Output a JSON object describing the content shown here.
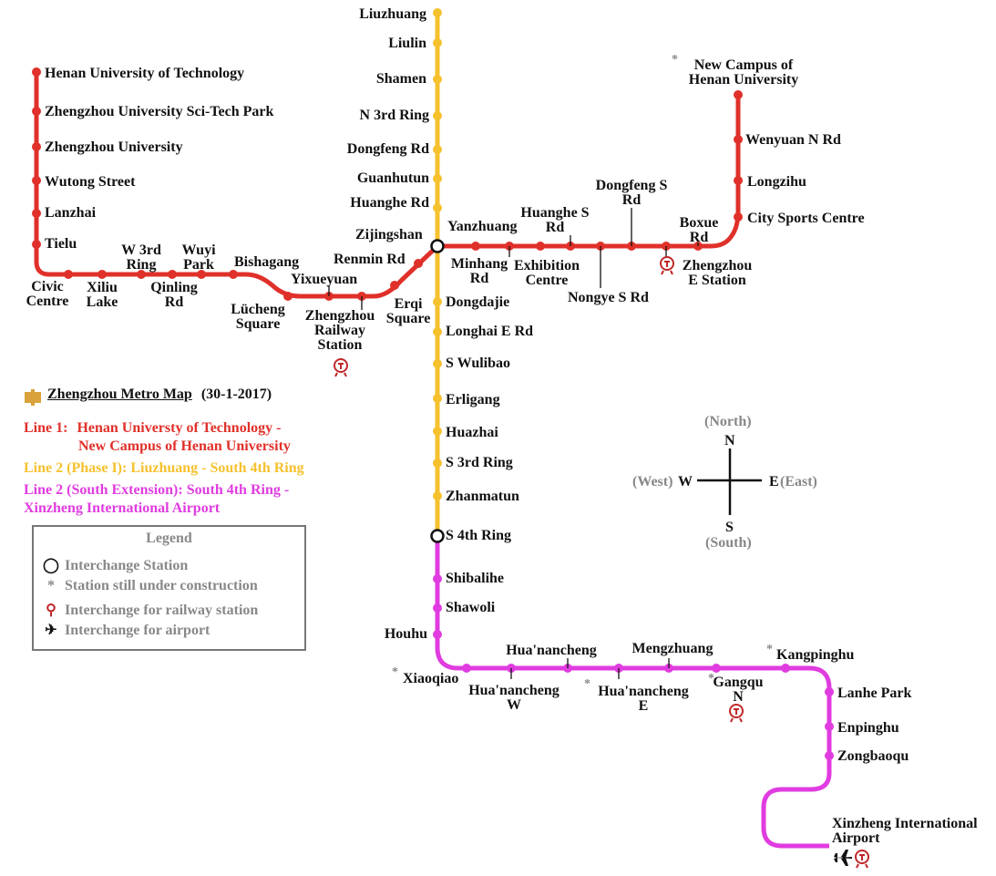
{
  "legend": {
    "title": "Legend",
    "items": [
      "Interchange Station",
      "Station still under construction",
      "Interchange for railway station",
      "Interchange for airport"
    ]
  },
  "map_title": "Zhengzhou Metro Map",
  "map_date": "(30-1-2017)",
  "line_descriptions": [
    {
      "prefix": "Line 1:",
      "text1": "Henan Universty of Technology  -",
      "text2": "New Campus of Henan University",
      "color": "#e0302a"
    },
    {
      "text": "Line 2 (Phase I): Liuzhuang - South 4th Ring",
      "color": "#f5c12e"
    },
    {
      "text1": "Line 2 (South Extension): South 4th Ring -",
      "text2": "Xinzheng International Airport",
      "color": "#e03ce0"
    }
  ],
  "compass": {
    "north_en": "(North)",
    "north": "N",
    "south": "S",
    "south_en": "(South)",
    "west_en": "(West)",
    "west": "W",
    "east": "E",
    "east_en": "(East)"
  },
  "colors": {
    "line1": "#e0302a",
    "line2": "#f5c12e",
    "line2_ext": "#e03ce0"
  },
  "stations": {
    "l1": [
      "Henan University of Technology",
      "Zhengzhou University Sci-Tech Park",
      "Zhengzhou University",
      "Wutong Street",
      "Lanzhai",
      "Tielu",
      "Civic Centre",
      "Xiliu Lake",
      "W 3rd Ring",
      "Qinling Rd",
      "Wuyi Park",
      "Bishagang",
      "Lücheng Square",
      "Yixueyuan",
      "Zhengzhou Railway Station",
      "Erqi Square",
      "Renmin Rd",
      "Zijingshan",
      "Yanzhuang",
      "Minhang Rd",
      "Exhibition Centre",
      "Huanghe S Rd",
      "Nongye S Rd",
      "Dongfeng S Rd",
      "Boxue Rd",
      "Zhengzhou E Station",
      "City Sports Centre",
      "Longzihu",
      "Wenyuan N Rd",
      "New Campus of Henan University"
    ],
    "l2": [
      "Liuzhuang",
      "Liulin",
      "Shamen",
      "N 3rd Ring",
      "Dongfeng Rd",
      "Guanhutun",
      "Huanghe Rd",
      "Dongdajie",
      "Longhai E Rd",
      "S Wulibao",
      "Erligang",
      "Huazhai",
      "S 3rd Ring",
      "Zhanmatun",
      "S 4th Ring"
    ],
    "l2ext": [
      "Shibalihe",
      "Shawoli",
      "Houhu",
      "Xiaoqiao",
      "Hua'nancheng W",
      "Hua'nancheng",
      "Hua'nancheng E",
      "Mengzhuang",
      "Gangqu N",
      "Kangpinghu",
      "Lanhe Park",
      "Enpinghu",
      "Zongbaoqu",
      "Xinzheng International Airport"
    ]
  }
}
